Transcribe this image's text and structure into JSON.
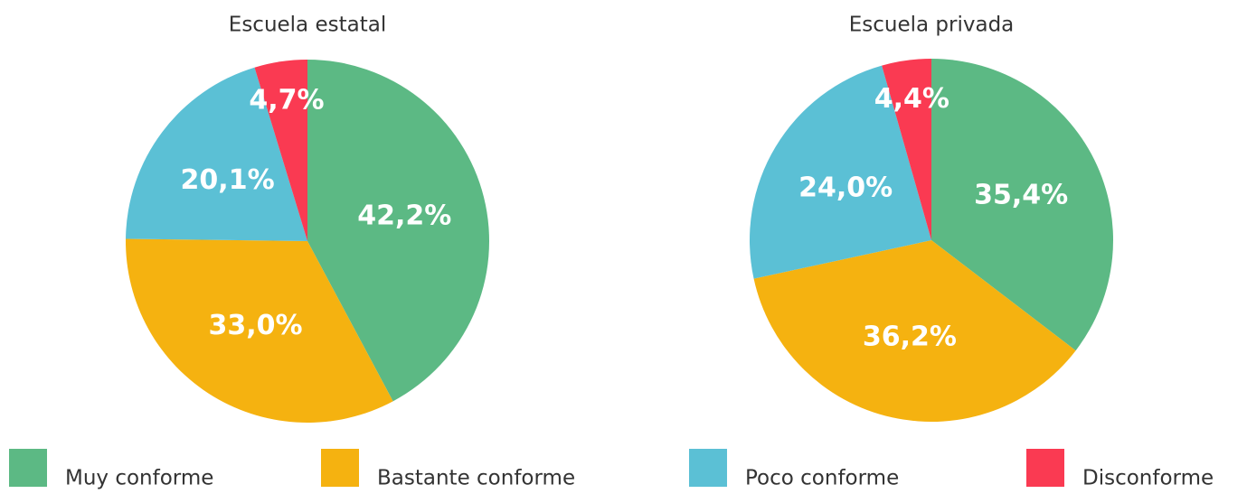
{
  "chart_data": [
    {
      "type": "pie",
      "title": "Escuela estatal",
      "values": [
        42.2,
        33.0,
        20.1,
        4.7
      ],
      "value_labels": [
        "42,2%",
        "33,0%",
        "20,1%",
        "4,7%"
      ]
    },
    {
      "type": "pie",
      "title": "Escuela privada",
      "values": [
        35.4,
        36.2,
        24.0,
        4.4
      ],
      "value_labels": [
        "35,4%",
        "36,2%",
        "24,0%",
        "4,4%"
      ]
    }
  ],
  "legend": {
    "labels": [
      "Muy conforme",
      "Bastante conforme",
      "Poco conforme",
      "Disconforme"
    ],
    "colors": [
      "#5cb984",
      "#f5b210",
      "#5bc0d5",
      "#fa3a52"
    ]
  }
}
